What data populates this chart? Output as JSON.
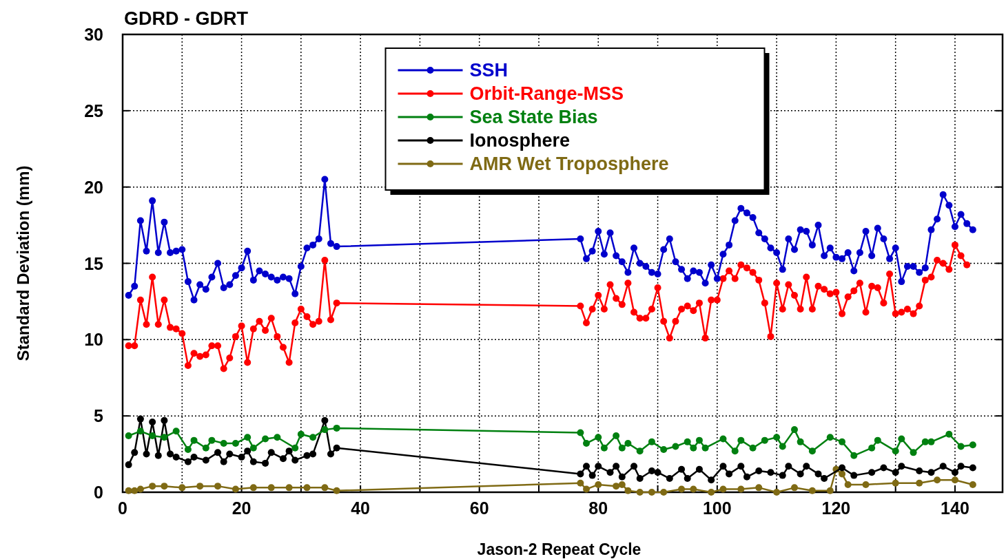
{
  "chart_data": {
    "type": "line",
    "title": "GDRD - GDRT",
    "xlabel": "Jason-2 Repeat Cycle",
    "ylabel": "Standard Deviation (mm)",
    "xlim": [
      0,
      148
    ],
    "ylim": [
      0,
      30
    ],
    "xticks": [
      0,
      {
        "value": 10,
        "label": null
      },
      20,
      {
        "value": 30,
        "label": null
      },
      40,
      {
        "value": 50,
        "label": null
      },
      60,
      {
        "value": 70,
        "label": null
      },
      80,
      {
        "value": 90,
        "label": null
      },
      100,
      {
        "value": 110,
        "label": null
      },
      120,
      {
        "value": 130,
        "label": null
      },
      140
    ],
    "yticks": [
      0,
      5,
      10,
      15,
      20,
      25,
      30
    ],
    "grid": true,
    "legend": "top",
    "marker": "circle",
    "line_style": "solid",
    "series": [
      {
        "name": "SSH",
        "color": "#0000cc",
        "x": [
          1,
          2,
          3,
          4,
          5,
          6,
          7,
          8,
          9,
          10,
          11,
          12,
          13,
          14,
          15,
          16,
          17,
          18,
          19,
          20,
          21,
          22,
          23,
          24,
          25,
          26,
          27,
          28,
          29,
          30,
          31,
          32,
          33,
          34,
          35,
          36,
          77,
          78,
          79,
          80,
          81,
          82,
          83,
          84,
          85,
          86,
          87,
          88,
          89,
          90,
          91,
          92,
          93,
          94,
          95,
          96,
          97,
          98,
          99,
          100,
          101,
          102,
          103,
          104,
          105,
          106,
          107,
          108,
          109,
          110,
          111,
          112,
          113,
          114,
          115,
          116,
          117,
          118,
          119,
          120,
          121,
          122,
          123,
          124,
          125,
          126,
          127,
          128,
          129,
          130,
          131,
          132,
          133,
          134,
          135,
          136,
          137,
          138,
          139,
          140,
          141,
          142,
          143
        ],
        "values": [
          12.9,
          13.5,
          17.8,
          15.8,
          19.1,
          15.7,
          17.7,
          15.7,
          15.8,
          15.9,
          13.8,
          12.6,
          13.6,
          13.3,
          14.1,
          15.0,
          13.4,
          13.6,
          14.2,
          14.7,
          15.8,
          13.9,
          14.5,
          14.3,
          14.1,
          13.9,
          14.1,
          14.0,
          13.0,
          14.8,
          16.0,
          16.2,
          16.6,
          20.5,
          16.3,
          16.1,
          16.6,
          15.3,
          15.8,
          17.1,
          15.6,
          17.0,
          15.5,
          15.1,
          14.4,
          16.0,
          15.0,
          14.8,
          14.4,
          14.3,
          15.9,
          16.6,
          15.1,
          14.6,
          14.0,
          14.5,
          14.4,
          13.7,
          14.9,
          14.0,
          15.6,
          16.2,
          17.8,
          18.6,
          18.3,
          18.0,
          17.0,
          16.6,
          16.0,
          15.7,
          14.6,
          16.6,
          15.9,
          17.2,
          17.1,
          16.2,
          17.5,
          15.5,
          16.0,
          15.4,
          15.3,
          15.7,
          14.5,
          15.7,
          17.1,
          15.5,
          17.3,
          16.6,
          15.3,
          16.0,
          13.8,
          14.8,
          14.8,
          14.4,
          14.7,
          17.2,
          17.9,
          19.5,
          18.8,
          17.4,
          18.2,
          17.6,
          17.2
        ]
      },
      {
        "name": "Orbit-Range-MSS",
        "color": "#ff0000",
        "x": [
          1,
          2,
          3,
          4,
          5,
          6,
          7,
          8,
          9,
          10,
          11,
          12,
          13,
          14,
          15,
          16,
          17,
          18,
          19,
          20,
          21,
          22,
          23,
          24,
          25,
          26,
          27,
          28,
          29,
          30,
          31,
          32,
          33,
          34,
          35,
          36,
          77,
          78,
          79,
          80,
          81,
          82,
          83,
          84,
          85,
          86,
          87,
          88,
          89,
          90,
          91,
          92,
          93,
          94,
          95,
          96,
          97,
          98,
          99,
          100,
          101,
          102,
          103,
          104,
          105,
          106,
          107,
          108,
          109,
          110,
          111,
          112,
          113,
          114,
          115,
          116,
          117,
          118,
          119,
          120,
          121,
          122,
          123,
          124,
          125,
          126,
          127,
          128,
          129,
          130,
          131,
          132,
          133,
          134,
          135,
          136,
          137,
          138,
          139,
          140,
          141,
          142
        ],
        "values": [
          9.6,
          9.6,
          12.6,
          11.0,
          14.1,
          11.0,
          12.6,
          10.8,
          10.7,
          10.4,
          8.3,
          9.1,
          8.9,
          9.0,
          9.6,
          9.6,
          8.1,
          8.8,
          10.2,
          10.9,
          8.5,
          10.7,
          11.2,
          10.6,
          11.4,
          10.2,
          9.5,
          8.5,
          11.1,
          12.0,
          11.5,
          11.0,
          11.2,
          15.2,
          11.3,
          12.4,
          12.2,
          11.1,
          12.0,
          12.9,
          12.0,
          13.6,
          12.7,
          12.3,
          13.7,
          11.8,
          11.4,
          11.4,
          12.0,
          13.4,
          11.2,
          10.1,
          11.2,
          12.0,
          12.2,
          11.9,
          12.4,
          10.1,
          12.6,
          12.6,
          14.0,
          14.5,
          14.0,
          14.9,
          14.7,
          14.4,
          13.9,
          12.4,
          10.2,
          13.7,
          12.0,
          13.6,
          12.9,
          12.0,
          14.1,
          12.0,
          13.5,
          13.3,
          13.0,
          13.1,
          11.7,
          12.8,
          13.2,
          13.7,
          11.8,
          13.5,
          13.4,
          12.4,
          14.3,
          11.7,
          11.8,
          12.0,
          11.7,
          12.2,
          13.9,
          14.1,
          15.2,
          15.0,
          14.6,
          16.2,
          15.5,
          14.9
        ]
      },
      {
        "name": "Sea State Bias",
        "color": "#008010",
        "x": [
          1,
          3,
          5,
          7,
          9,
          11,
          12,
          14,
          15,
          17,
          19,
          21,
          22,
          24,
          26,
          29,
          30,
          32,
          34,
          36,
          77,
          78,
          80,
          81,
          83,
          84,
          85,
          87,
          89,
          91,
          93,
          95,
          96,
          97,
          98,
          101,
          103,
          104,
          106,
          108,
          110,
          111,
          113,
          114,
          116,
          119,
          121,
          123,
          126,
          127,
          130,
          131,
          133,
          135,
          136,
          139,
          141,
          143
        ],
        "values": [
          3.7,
          4.0,
          3.7,
          3.6,
          4.0,
          2.8,
          3.4,
          2.9,
          3.4,
          3.2,
          3.2,
          3.6,
          2.9,
          3.5,
          3.6,
          2.9,
          3.8,
          3.6,
          4.1,
          4.2,
          3.9,
          3.2,
          3.6,
          2.9,
          3.7,
          2.9,
          3.2,
          2.7,
          3.3,
          2.8,
          3.0,
          3.3,
          2.9,
          3.4,
          2.9,
          3.5,
          2.7,
          3.4,
          2.9,
          3.4,
          3.6,
          3.0,
          4.1,
          3.3,
          2.7,
          3.6,
          3.3,
          2.4,
          2.9,
          3.4,
          2.7,
          3.5,
          2.6,
          3.3,
          3.3,
          3.8,
          3.0,
          3.1
        ]
      },
      {
        "name": "Ionosphere",
        "color": "#000000",
        "x": [
          1,
          2,
          3,
          4,
          5,
          6,
          7,
          8,
          9,
          11,
          12,
          14,
          16,
          17,
          18,
          20,
          21,
          22,
          24,
          25,
          27,
          28,
          29,
          31,
          32,
          34,
          35,
          36,
          77,
          78,
          79,
          80,
          82,
          83,
          84,
          86,
          87,
          89,
          90,
          92,
          94,
          95,
          97,
          99,
          101,
          102,
          104,
          105,
          107,
          109,
          111,
          112,
          114,
          115,
          117,
          118,
          121,
          123,
          126,
          128,
          130,
          131,
          134,
          136,
          138,
          140,
          141,
          143
        ],
        "values": [
          1.8,
          2.6,
          4.8,
          2.5,
          4.6,
          2.4,
          4.7,
          2.5,
          2.3,
          2.0,
          2.3,
          2.1,
          2.6,
          2.0,
          2.5,
          2.3,
          2.7,
          2.0,
          1.9,
          2.6,
          2.2,
          2.7,
          2.1,
          2.4,
          2.5,
          4.7,
          2.5,
          2.9,
          1.2,
          1.7,
          1.1,
          1.7,
          1.3,
          1.7,
          1.0,
          1.7,
          0.9,
          1.4,
          1.3,
          0.9,
          1.5,
          0.9,
          1.5,
          0.8,
          1.7,
          1.2,
          1.7,
          1.0,
          1.4,
          1.3,
          1.1,
          1.7,
          1.2,
          1.7,
          1.2,
          0.9,
          1.6,
          1.1,
          1.3,
          1.6,
          1.3,
          1.7,
          1.4,
          1.3,
          1.7,
          1.3,
          1.7,
          1.6
        ]
      },
      {
        "name": "AMR Wet Troposphere",
        "color": "#7f6a14",
        "x": [
          1,
          2,
          3,
          5,
          7,
          10,
          13,
          16,
          19,
          22,
          25,
          28,
          31,
          34,
          36,
          77,
          78,
          80,
          83,
          84,
          85,
          87,
          89,
          91,
          94,
          96,
          99,
          101,
          104,
          107,
          110,
          113,
          116,
          119,
          120,
          121,
          122,
          125,
          130,
          134,
          137,
          140,
          143
        ],
        "values": [
          0.1,
          0.1,
          0.2,
          0.4,
          0.4,
          0.3,
          0.4,
          0.4,
          0.2,
          0.3,
          0.3,
          0.3,
          0.3,
          0.3,
          0.1,
          0.6,
          0.2,
          0.5,
          0.4,
          0.5,
          0.1,
          0.0,
          0.0,
          0.0,
          0.2,
          0.2,
          0.0,
          0.2,
          0.2,
          0.3,
          0.0,
          0.3,
          0.1,
          0.1,
          1.5,
          1.2,
          0.5,
          0.5,
          0.6,
          0.6,
          0.8,
          0.8,
          0.5
        ]
      }
    ]
  }
}
